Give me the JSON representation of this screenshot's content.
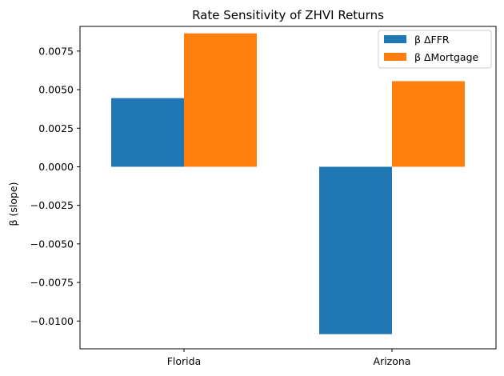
{
  "chart_data": {
    "type": "bar",
    "title": "Rate Sensitivity of ZHVI Returns",
    "xlabel": "",
    "ylabel": "β (slope)",
    "categories": [
      "Florida",
      "Arizona"
    ],
    "series": [
      {
        "name": "β ΔFFR",
        "color": "#1f77b4",
        "values": [
          0.00445,
          -0.01085
        ]
      },
      {
        "name": "β ΔMortgage",
        "color": "#ff7f0e",
        "values": [
          0.00865,
          0.00555
        ]
      }
    ],
    "ylim": [
      -0.0118,
      0.0091
    ],
    "yticks": [
      -0.01,
      -0.0075,
      -0.005,
      -0.0025,
      0.0,
      0.0025,
      0.005,
      0.0075
    ],
    "ytick_labels": [
      "−0.0100",
      "−0.0075",
      "−0.0050",
      "−0.0025",
      "0.0000",
      "0.0025",
      "0.0050",
      "0.0075"
    ],
    "legend": "top-right",
    "grid": false
  }
}
